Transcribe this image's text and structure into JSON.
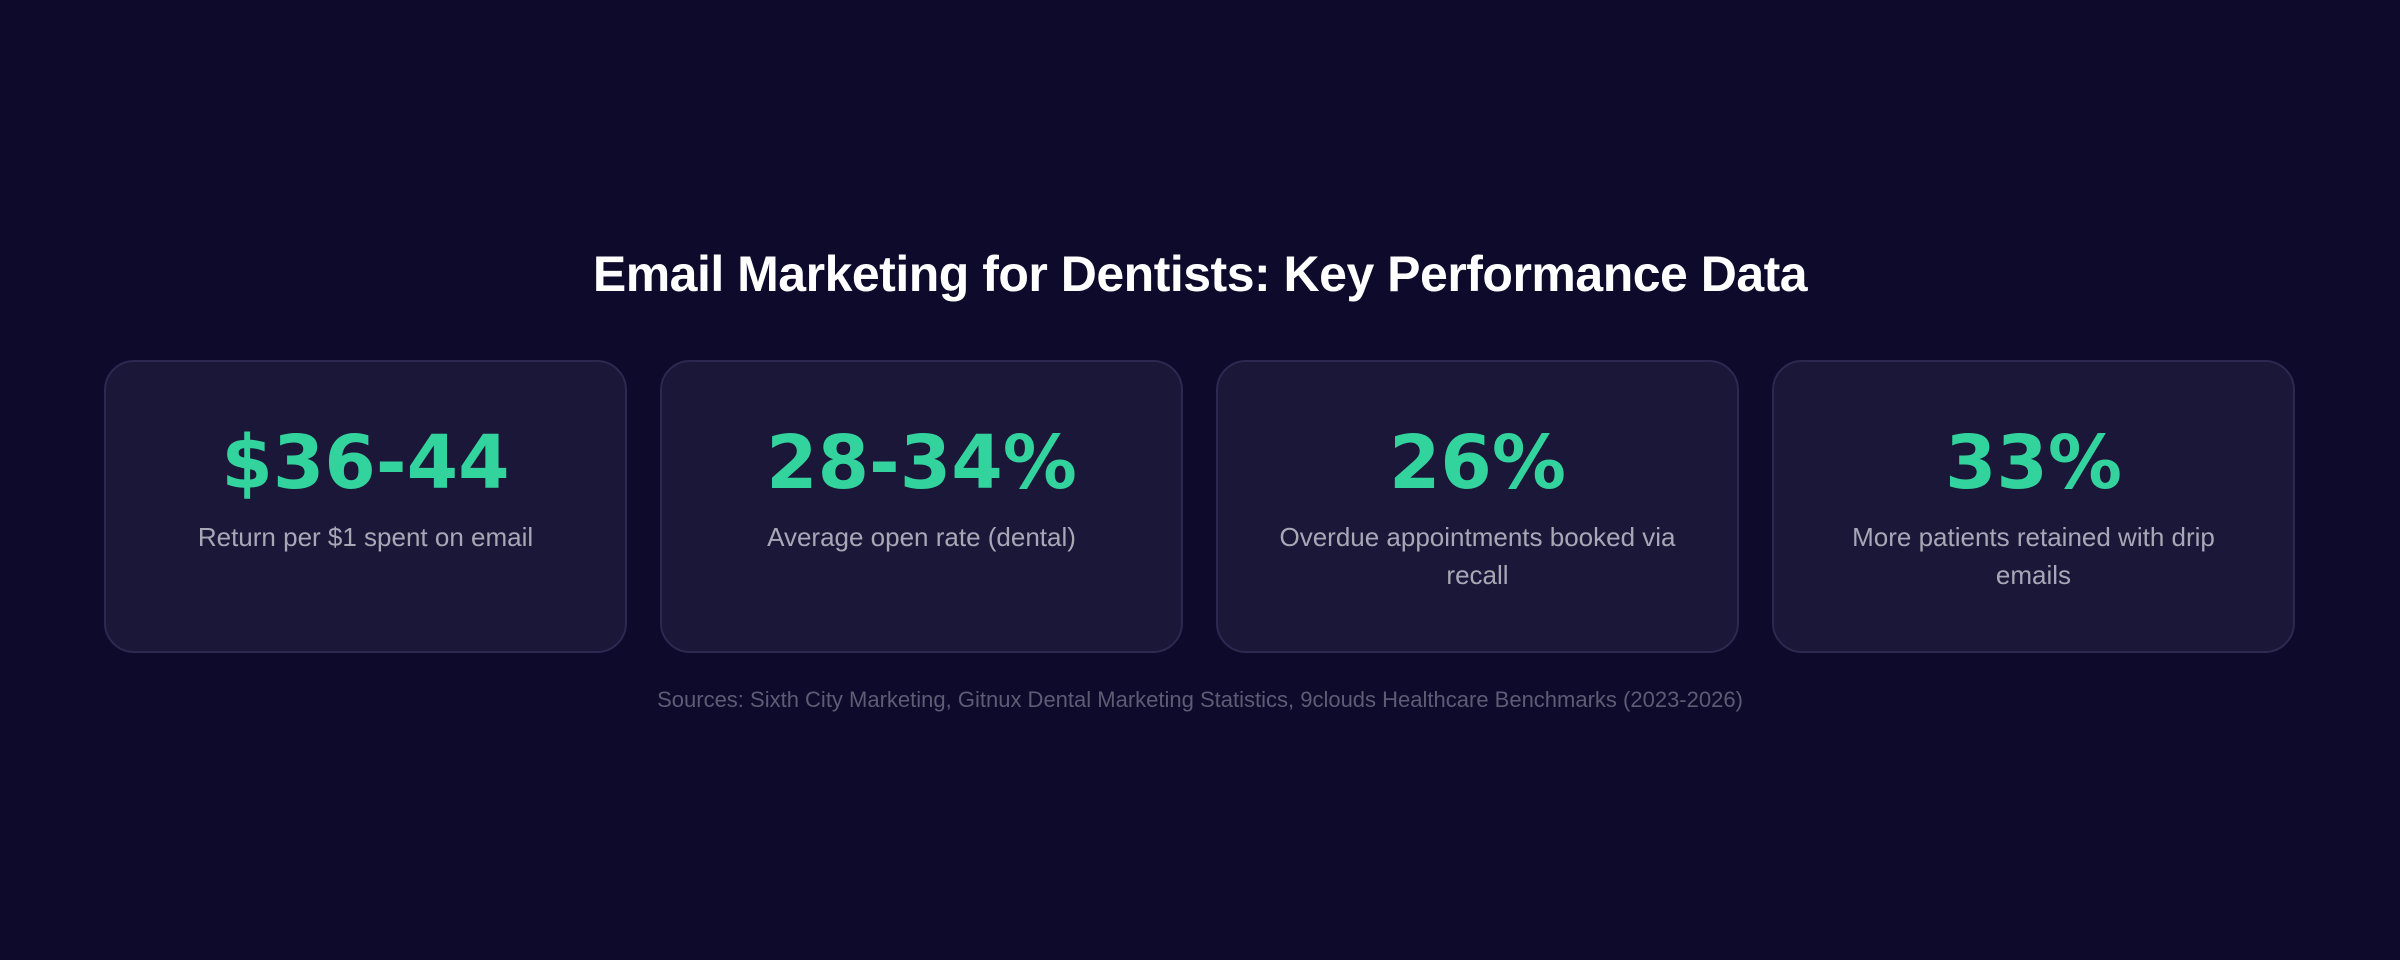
{
  "title": "Email Marketing for Dentists: Key Performance Data",
  "cards": [
    {
      "value": "$36-44",
      "label": "Return per $1 spent on email"
    },
    {
      "value": "28-34%",
      "label": "Average open rate (dental)"
    },
    {
      "value": "26%",
      "label": "Overdue appointments booked via recall"
    },
    {
      "value": "33%",
      "label": "More patients retained with drip emails"
    }
  ],
  "sources": "Sources: Sixth City Marketing, Gitnux Dental Marketing Statistics, 9clouds Healthcare Benchmarks (2023-2026)",
  "colors": {
    "background": "#0d0a2c",
    "card": "#1b1739",
    "accent": "#33d39d"
  }
}
